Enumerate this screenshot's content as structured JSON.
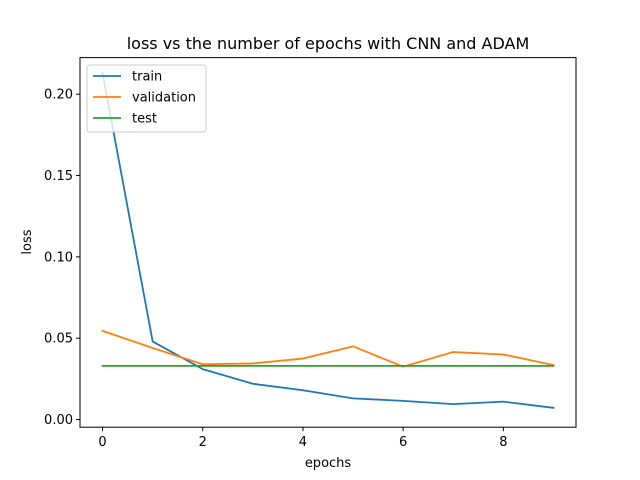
{
  "chart_data": {
    "type": "line",
    "title": "loss vs the number of epochs with CNN and ADAM",
    "xlabel": "epochs",
    "ylabel": "loss",
    "xlim": [
      -0.45,
      9.45
    ],
    "ylim": [
      -0.0047,
      0.2225
    ],
    "xticks": [
      0,
      2,
      4,
      6,
      8
    ],
    "xtick_labels": [
      "0",
      "2",
      "4",
      "6",
      "8"
    ],
    "yticks": [
      0.0,
      0.05,
      0.1,
      0.15,
      0.2
    ],
    "ytick_labels": [
      "0.00",
      "0.05",
      "0.10",
      "0.15",
      "0.20"
    ],
    "grid": false,
    "legend_position": "upper-left",
    "x": [
      0,
      1,
      2,
      3,
      4,
      5,
      6,
      7,
      8,
      9
    ],
    "series": [
      {
        "name": "train",
        "color": "#1f77b4",
        "values": [
          0.213,
          0.048,
          0.031,
          0.022,
          0.018,
          0.013,
          0.0115,
          0.0095,
          0.011,
          0.0072
        ]
      },
      {
        "name": "validation",
        "color": "#ff7f0e",
        "values": [
          0.0545,
          0.044,
          0.034,
          0.0345,
          0.0375,
          0.045,
          0.0325,
          0.0415,
          0.04,
          0.0335
        ]
      },
      {
        "name": "test",
        "color": "#2ca02c",
        "values": [
          0.033,
          0.033,
          0.033,
          0.033,
          0.033,
          0.033,
          0.033,
          0.033,
          0.033,
          0.033
        ]
      }
    ]
  }
}
